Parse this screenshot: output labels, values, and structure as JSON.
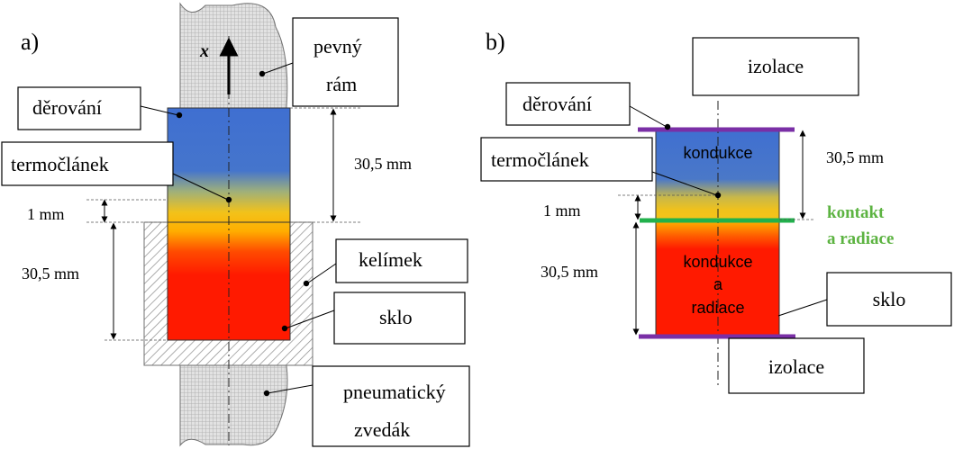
{
  "panel_a": {
    "label": "a)",
    "x_axis": "x",
    "labels": {
      "pevny_line1": "pevný",
      "pevny_line2": "rám",
      "derovani": "děrování",
      "termoclanek": "termočlánek",
      "kelimek": "kelímek",
      "sklo": "sklo",
      "pneu_line1": "pneumatický",
      "pneu_line2": "zvedák"
    },
    "dimensions": {
      "top": "30,5 mm",
      "gap": "1 mm",
      "bottom": "30,5 mm"
    }
  },
  "panel_b": {
    "label": "b)",
    "labels": {
      "izolace_top": "izolace",
      "derovani": "děrování",
      "termoclanek": "termočlánek",
      "sklo": "sklo",
      "izolace_bottom": "izolace"
    },
    "inner": {
      "upper": "kondukce",
      "lower_line1": "kondukce",
      "lower_line2": "a",
      "lower_line3": "radiace"
    },
    "contact_line1": "kontakt",
    "contact_line2": "a radiace",
    "dimensions": {
      "top": "30,5 mm",
      "gap": "1 mm",
      "bottom": "30,5 mm"
    }
  },
  "colors": {
    "blue": "#3f6fd1",
    "yellow": "#f2c21a",
    "orange": "#ff7a00",
    "red": "#ff1a00",
    "purple": "#7a2fa6",
    "green": "#22b14c",
    "contact_text": "#5cb341"
  }
}
